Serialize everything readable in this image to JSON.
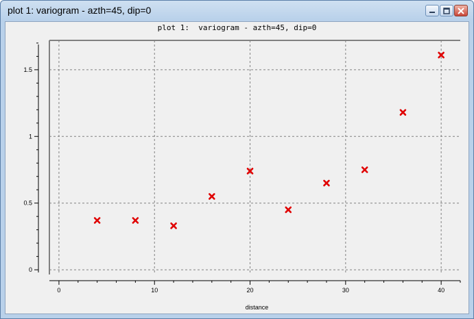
{
  "window": {
    "title": "plot 1:  variogram - azth=45, dip=0"
  },
  "plot": {
    "title": "plot 1:  variogram - azth=45, dip=0"
  },
  "chart_data": {
    "type": "scatter",
    "title": "plot 1:  variogram - azth=45, dip=0",
    "xlabel": "distance",
    "ylabel": "",
    "xlim": [
      -1,
      42
    ],
    "ylim": [
      -0.02,
      1.72
    ],
    "x_ticks": [
      0,
      10,
      20,
      30,
      40
    ],
    "x_tick_labels": [
      "0",
      "10",
      "20",
      "30",
      "40"
    ],
    "y_ticks": [
      0,
      0.5,
      1,
      1.5
    ],
    "y_tick_labels": [
      "0",
      "0.5",
      "1",
      "1.5"
    ],
    "grid": true,
    "marker": "x",
    "color": "#e00000",
    "series": [
      {
        "x": [
          4,
          8,
          12,
          16,
          20,
          24,
          28,
          32,
          36,
          40
        ],
        "y": [
          0.37,
          0.37,
          0.33,
          0.55,
          0.74,
          0.45,
          0.65,
          0.75,
          1.18,
          1.61
        ]
      }
    ]
  },
  "icons": {
    "minimize": "minimize-icon",
    "maximize": "maximize-icon",
    "close": "close-icon"
  }
}
